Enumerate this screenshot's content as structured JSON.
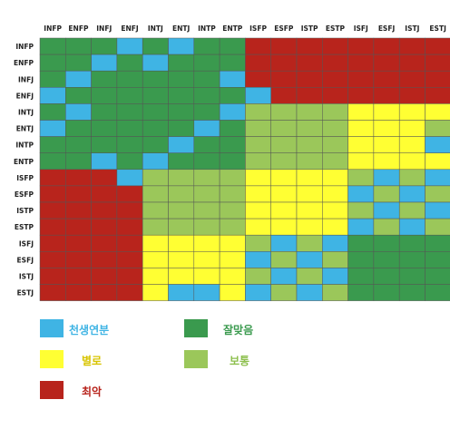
{
  "types": [
    "INFP",
    "ENFP",
    "INFJ",
    "ENFJ",
    "INTJ",
    "ENTJ",
    "INTP",
    "ENTP",
    "ISFP",
    "ESFP",
    "ISTP",
    "ESTP",
    "ISFJ",
    "ESFJ",
    "ISTJ",
    "ESTJ"
  ],
  "colors": {
    "B": "#3fb4e4",
    "G": "#3a9a4e",
    "L": "#9bc75a",
    "Y": "#ffff33",
    "R": "#b8241c"
  },
  "matrix": [
    "GGGBGBGGRRRRRRRR",
    "GGBGBGGGRRRRRRRR",
    "GBGGGGGBRRRRRRRR",
    "BGGGGGGGBRRRRRRR",
    "GBGGGGGBLLLLYYYY",
    "BGGGGGBGLLLLYYYL",
    "GGGGGBGGLLLLYYYB",
    "GGBGBGGGLLLLYYYY",
    "RRRBLLLLYYYYLBLB",
    "RRRRLLLLYYYYBLBL",
    "RRRRLLLLYYYYLBLB",
    "RRRRLLLLYYYYBLBL",
    "RRRRYYYYLBLBGGGG",
    "RRRRYYYYBLBLGGGG",
    "RRRRYYYYLBLBGGGG",
    "RRRRYBBYBLBLGGGG"
  ],
  "legend": [
    {
      "label": "천생연분",
      "key": "B",
      "label_color": "#3fb4e4"
    },
    {
      "label": "잘맞음",
      "key": "G",
      "label_color": "#3a9a4e"
    },
    {
      "label": "별로",
      "key": "Y",
      "label_color": "#d8c400"
    },
    {
      "label": "보통",
      "key": "L",
      "label_color": "#8cbf4c"
    },
    {
      "label": "최악",
      "key": "R",
      "label_color": "#b8241c"
    }
  ]
}
